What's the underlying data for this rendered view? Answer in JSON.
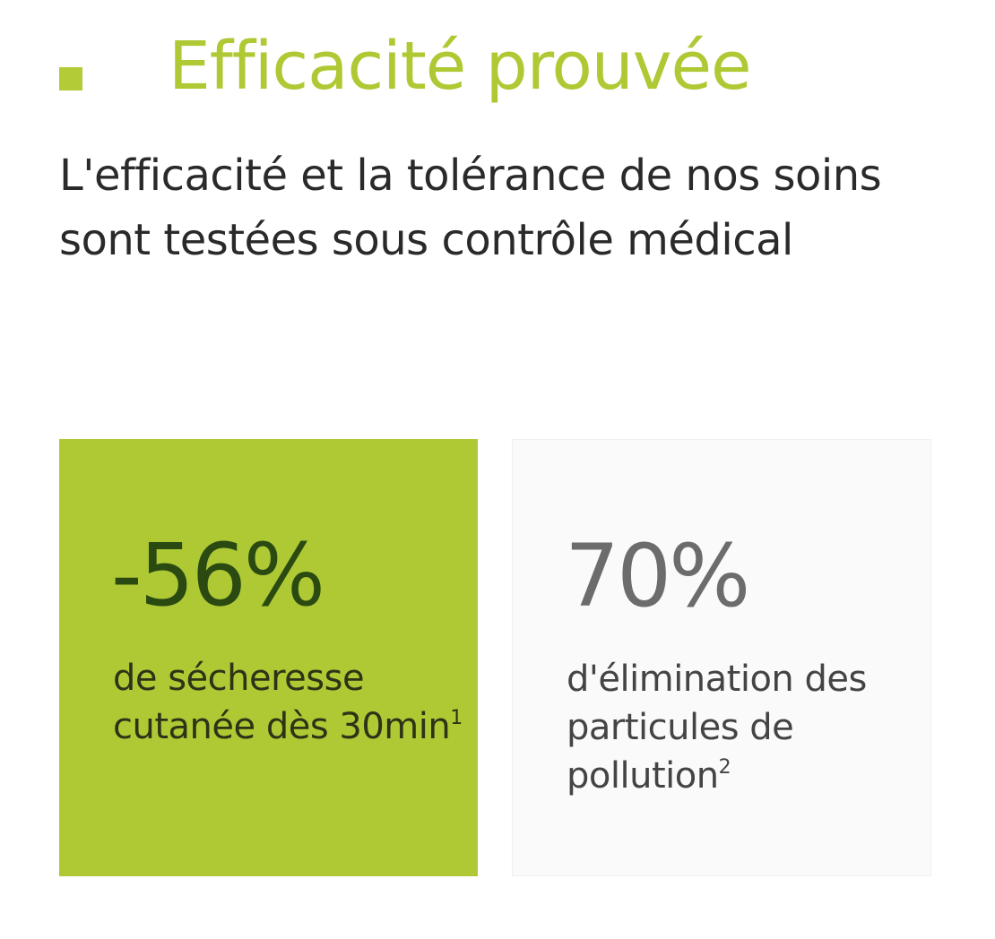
{
  "header": {
    "title": "Efficacité prouvée",
    "subtitle": "L'efficacité et la tolérance de nos soins sont testées sous contrôle médical"
  },
  "stats": [
    {
      "value": "-56%",
      "label": "de sécheresse cutanée dès 30min",
      "footnote": "1"
    },
    {
      "value": "70%",
      "label": "d'élimination des particules de pollution",
      "footnote": "2"
    }
  ],
  "colors": {
    "accent": "#aec934",
    "title": "#aec934",
    "dark_green": "#2b4a12",
    "card_light_bg": "#fafafa",
    "text": "#2a2a2a"
  }
}
